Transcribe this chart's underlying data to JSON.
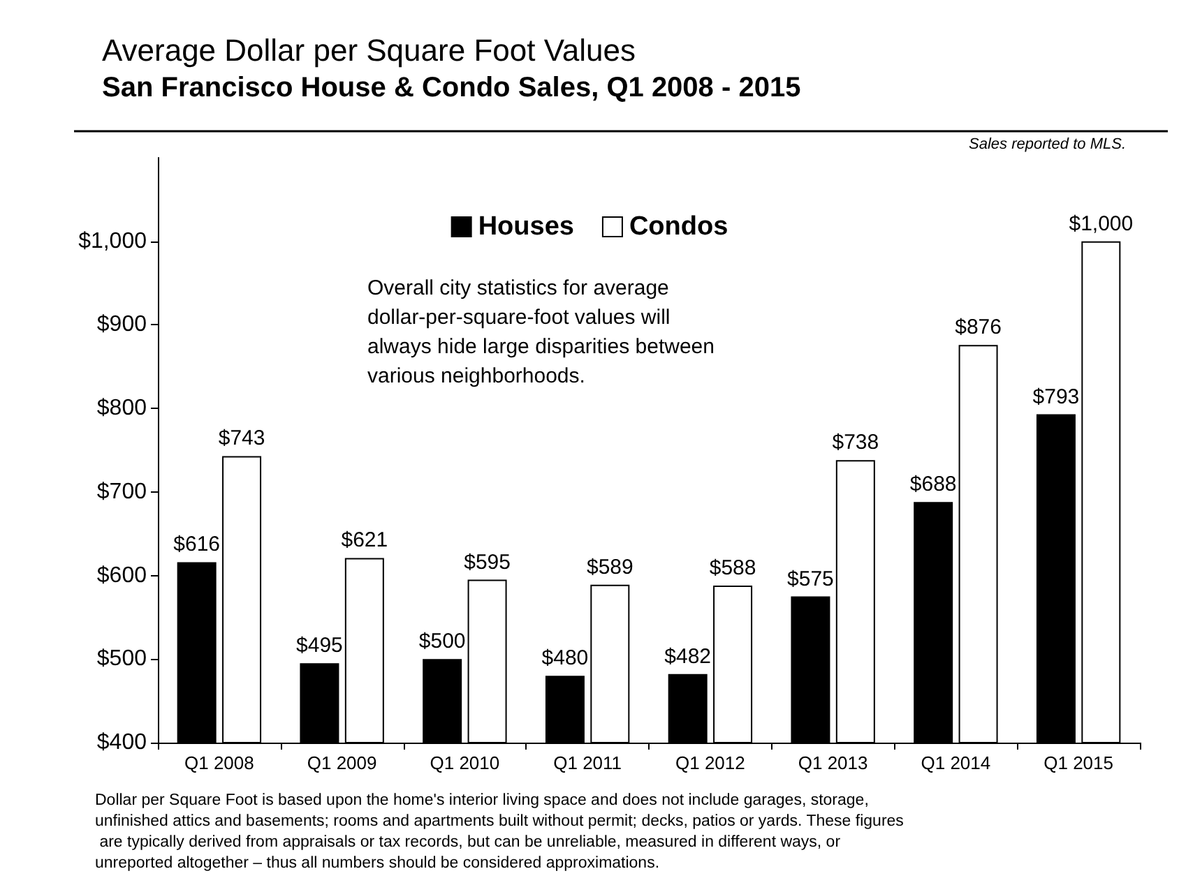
{
  "chart_data": {
    "type": "bar",
    "title": "Average Dollar per Square Foot Values",
    "subtitle": "San Francisco House & Condo Sales, Q1 2008 - 2015",
    "categories": [
      "Q1 2008",
      "Q1 2009",
      "Q1 2010",
      "Q1 2011",
      "Q1 2012",
      "Q1 2013",
      "Q1 2014",
      "Q1 2015"
    ],
    "series": [
      {
        "name": "Houses",
        "color": "#000000",
        "values": [
          616,
          495,
          500,
          480,
          482,
          575,
          688,
          793
        ],
        "value_labels": [
          "$616",
          "$495",
          "$500",
          "$480",
          "$482",
          "$575",
          "$688",
          "$793"
        ]
      },
      {
        "name": "Condos",
        "color": "#ffffff",
        "values": [
          743,
          621,
          595,
          589,
          588,
          738,
          876,
          1000
        ],
        "value_labels": [
          "$743",
          "$621",
          "$595",
          "$589",
          "$588",
          "$738",
          "$876",
          "$1,000"
        ]
      }
    ],
    "ylim": [
      400,
      1100
    ],
    "yticks": [
      {
        "value": 400,
        "label": "$400"
      },
      {
        "value": 500,
        "label": "$500"
      },
      {
        "value": 600,
        "label": "$600"
      },
      {
        "value": 700,
        "label": "$700"
      },
      {
        "value": 800,
        "label": "$800"
      },
      {
        "value": 900,
        "label": "$900"
      },
      {
        "value": 1000,
        "label": "$1,000"
      }
    ],
    "grid": false,
    "legend": "top",
    "annotations": [
      "Sales reported to MLS.",
      "Overall city statistics for average dollar-per-square-foot values will always hide large disparities between various neighborhoods.",
      "Dollar per Square Foot is based upon the home's interior living space and does not include garages, storage, unfinished attics and basements; rooms and apartments built without permit; decks, patios or yards. These figures are typically derived from appraisals or tax records, but can be unreliable, measured in different ways, or unreported altogether – thus all numbers should be considered approximations."
    ]
  }
}
